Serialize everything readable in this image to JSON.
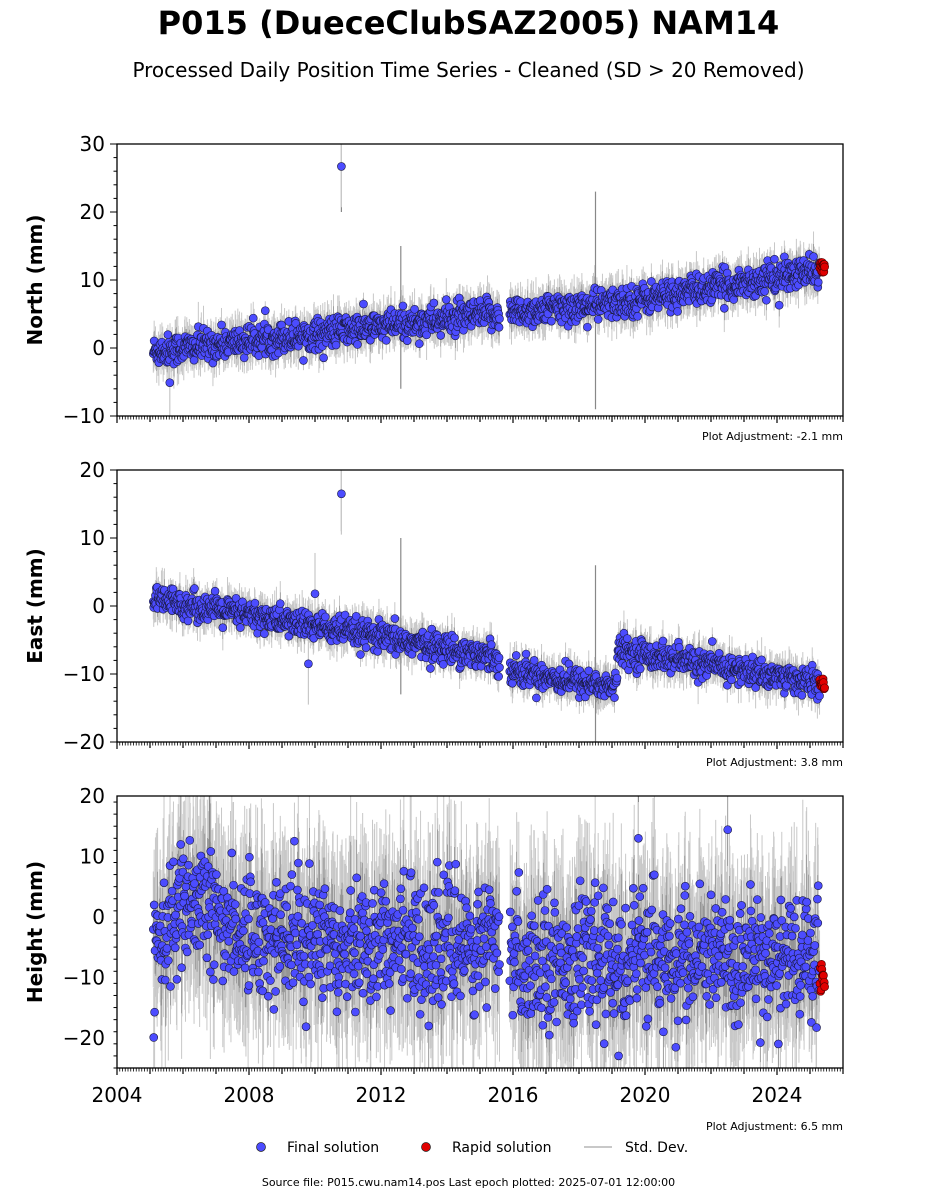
{
  "title": "P015 (DueceClubSAZ2005) NAM14",
  "subtitle": "Processed Daily Position Time Series - Cleaned (SD > 20 Removed)",
  "legend": {
    "final_label": "Final solution",
    "rapid_label": "Rapid solution",
    "std_label": "Std. Dev."
  },
  "footer": "Source file: P015.cwu.nam14.pos  Last epoch plotted: 2025-07-01 12:00:00",
  "colors": {
    "final": "#4c4cff",
    "rapid": "#e00000",
    "stddev_light": "#c8c8c8",
    "stddev_dark": "#555555"
  },
  "chart_data": [
    {
      "type": "scatter",
      "ylabel": "North (mm)",
      "ylim": [
        -10,
        30
      ],
      "yticks": [
        -10,
        0,
        10,
        20,
        30
      ],
      "xlim": [
        2004,
        2026
      ],
      "adjustment": "Plot Adjustment: -2.1 mm",
      "trend": [
        [
          2005.1,
          -0.5
        ],
        [
          2015.5,
          5.0
        ],
        [
          2019.0,
          6.5
        ],
        [
          2025.45,
          11.5
        ]
      ],
      "segment_breaks": [
        2015.6,
        2015.9
      ],
      "noise_sd": 1.1,
      "outliers": [
        {
          "x": 2010.8,
          "y": 26.7
        },
        {
          "x": 2005.6,
          "y": -5.1
        }
      ],
      "spikes": [
        {
          "x": 2018.5,
          "low": -9,
          "high": 23
        },
        {
          "x": 2012.6,
          "low": -6,
          "high": 15
        },
        {
          "x": 2010.8,
          "low": 20,
          "high": 30
        }
      ],
      "rapid": {
        "x_start": 2025.3,
        "x_end": 2025.45,
        "y_center": 11.8,
        "y_spread": 0.9
      }
    },
    {
      "type": "scatter",
      "ylabel": "East (mm)",
      "ylim": [
        -20,
        20
      ],
      "yticks": [
        -20,
        -10,
        0,
        10,
        20
      ],
      "xlim": [
        2004,
        2026
      ],
      "adjustment": "Plot Adjustment: 3.8 mm",
      "trend": [
        [
          2005.1,
          1.0
        ],
        [
          2015.5,
          -7.5
        ],
        [
          2015.9,
          -9.5
        ],
        [
          2019.1,
          -12.0
        ],
        [
          2019.2,
          -6.5
        ],
        [
          2025.45,
          -11.5
        ]
      ],
      "segment_breaks": [
        2015.6,
        2015.9
      ],
      "noise_sd": 1.0,
      "outliers": [
        {
          "x": 2010.8,
          "y": 16.5
        },
        {
          "x": 2009.8,
          "y": -8.5
        },
        {
          "x": 2010.0,
          "y": 1.8
        }
      ],
      "spikes": [
        {
          "x": 2018.5,
          "low": -20,
          "high": 6
        },
        {
          "x": 2012.6,
          "low": -13,
          "high": 10
        },
        {
          "x": 2010.8,
          "low": 11,
          "high": 20
        }
      ],
      "rapid": {
        "x_start": 2025.3,
        "x_end": 2025.45,
        "y_center": -11.5,
        "y_spread": 0.8
      }
    },
    {
      "type": "scatter",
      "ylabel": "Height (mm)",
      "ylim": [
        -25,
        20
      ],
      "yticks": [
        -20,
        -10,
        0,
        10,
        20
      ],
      "xlim": [
        2004,
        2026
      ],
      "xticks": [
        2004,
        2008,
        2012,
        2016,
        2020,
        2024
      ],
      "adjustment": "Plot Adjustment: 6.5 mm",
      "trend": [
        [
          2005.1,
          -3.0
        ],
        [
          2006.5,
          2.0
        ],
        [
          2008.0,
          -3.0
        ],
        [
          2015.5,
          -5.0
        ],
        [
          2016.0,
          -7.0
        ],
        [
          2025.45,
          -7.0
        ]
      ],
      "segment_breaks": [
        2015.6,
        2015.9
      ],
      "noise_sd": 5.0,
      "outliers": [
        {
          "x": 2019.8,
          "y": 13.0
        },
        {
          "x": 2019.2,
          "y": -23.0
        }
      ],
      "spikes": [
        {
          "x": 2006.8,
          "low": -10,
          "high": 20
        },
        {
          "x": 2019.8,
          "low": 0,
          "high": 20
        }
      ],
      "rapid": {
        "x_start": 2025.3,
        "x_end": 2025.45,
        "y_center": -9.5,
        "y_spread": 3.5
      }
    }
  ]
}
